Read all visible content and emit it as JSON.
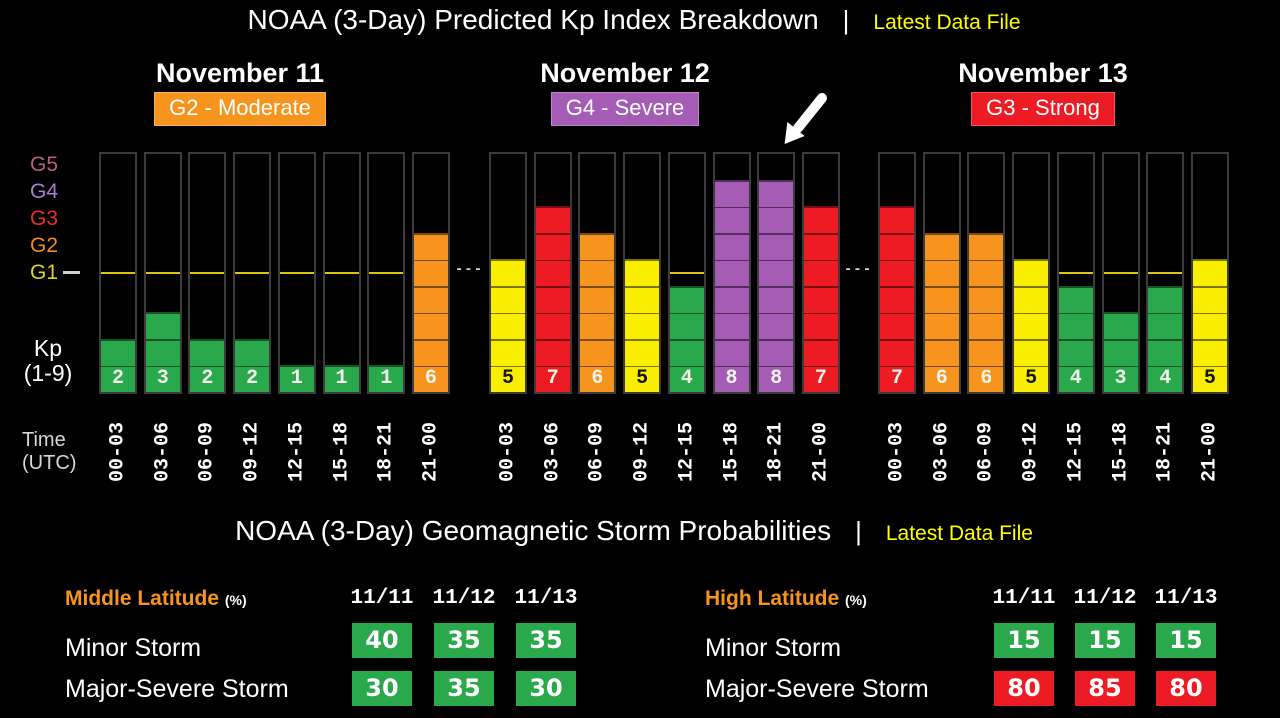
{
  "header": {
    "title": "NOAA (3-Day) Predicted Kp Index Breakdown",
    "separator": "|",
    "link_label": "Latest Data File",
    "link_color": "#ffff00"
  },
  "kp_chart": {
    "days": [
      {
        "name": "November 11",
        "badge_text": "G2 - Moderate",
        "badge_color": "#f7941d",
        "values": [
          2,
          3,
          2,
          2,
          1,
          1,
          1,
          6
        ]
      },
      {
        "name": "November 12",
        "badge_text": "G4 - Severe",
        "badge_color": "#a55cb4",
        "values": [
          5,
          7,
          6,
          5,
          4,
          8,
          8,
          7
        ]
      },
      {
        "name": "November 13",
        "badge_text": "G3 - Strong",
        "badge_color": "#ed1c24",
        "values": [
          7,
          6,
          6,
          5,
          4,
          3,
          4,
          5
        ]
      }
    ],
    "g_labels": [
      {
        "text": "G5",
        "color": "#b4607d"
      },
      {
        "text": "G4",
        "color": "#a97fd1"
      },
      {
        "text": "G3",
        "color": "#e8302a"
      },
      {
        "text": "G2",
        "color": "#f28c1e"
      },
      {
        "text": "G1",
        "color": "#ddd22b"
      }
    ],
    "kp_axis_label": [
      "Kp",
      "(1-9)"
    ],
    "time_axis_label": [
      "Time",
      "(UTC)"
    ],
    "time_slots": [
      "00-03",
      "03-06",
      "06-09",
      "09-12",
      "12-15",
      "15-18",
      "18-21",
      "21-00"
    ],
    "panel_separator": "---",
    "value_colors": {
      "1": "#2aa84c",
      "2": "#2aa84c",
      "3": "#2aa84c",
      "4": "#2aa84c",
      "5": "#f9ed00",
      "6": "#f7941d",
      "7": "#ed1c24",
      "8": "#a55cb4",
      "9": "#b4607d"
    },
    "number_colors": {
      "on_yellow": "#141414",
      "default": "#f4f4ec"
    },
    "g1_line_color": "#d9c514"
  },
  "prob_section": {
    "title": "NOAA (3-Day) Geomagnetic Storm Probabilities",
    "separator": "|",
    "link_label": "Latest Data File",
    "tables": [
      {
        "name": "Middle Latitude",
        "unit": "(%)",
        "columns": [
          "11/11",
          "11/12",
          "11/13"
        ],
        "rows": [
          {
            "label": "Minor Storm",
            "cells": [
              {
                "value": "40",
                "color": "#2aa84c"
              },
              {
                "value": "35",
                "color": "#2aa84c"
              },
              {
                "value": "35",
                "color": "#2aa84c"
              }
            ]
          },
          {
            "label": "Major-Severe Storm",
            "cells": [
              {
                "value": "30",
                "color": "#2aa84c"
              },
              {
                "value": "35",
                "color": "#2aa84c"
              },
              {
                "value": "30",
                "color": "#2aa84c"
              }
            ]
          }
        ]
      },
      {
        "name": "High Latitude",
        "unit": "(%)",
        "columns": [
          "11/11",
          "11/12",
          "11/13"
        ],
        "rows": [
          {
            "label": "Minor Storm",
            "cells": [
              {
                "value": "15",
                "color": "#2aa84c"
              },
              {
                "value": "15",
                "color": "#2aa84c"
              },
              {
                "value": "15",
                "color": "#2aa84c"
              }
            ]
          },
          {
            "label": "Major-Severe Storm",
            "cells": [
              {
                "value": "80",
                "color": "#ed1c24"
              },
              {
                "value": "85",
                "color": "#ed1c24"
              },
              {
                "value": "80",
                "color": "#ed1c24"
              }
            ]
          }
        ]
      }
    ]
  },
  "chart_data": [
    {
      "type": "bar",
      "title": "NOAA (3-Day) Predicted Kp Index Breakdown",
      "ylabel": "Kp (1-9)",
      "ylim": [
        0,
        9
      ],
      "grid": false,
      "x_categories_per_day": [
        "00-03",
        "03-06",
        "06-09",
        "09-12",
        "12-15",
        "15-18",
        "18-21",
        "21-00"
      ],
      "series": [
        {
          "name": "November 11",
          "storm_level": "G2 - Moderate",
          "values": [
            2,
            3,
            2,
            2,
            1,
            1,
            1,
            6
          ]
        },
        {
          "name": "November 12",
          "storm_level": "G4 - Severe",
          "values": [
            5,
            7,
            6,
            5,
            4,
            8,
            8,
            7
          ]
        },
        {
          "name": "November 13",
          "storm_level": "G3 - Strong",
          "values": [
            7,
            6,
            6,
            5,
            4,
            3,
            4,
            5
          ]
        }
      ],
      "g_scale_ticks": [
        {
          "label": "G5",
          "kp": 9
        },
        {
          "label": "G4",
          "kp": 8
        },
        {
          "label": "G3",
          "kp": 7
        },
        {
          "label": "G2",
          "kp": 6
        },
        {
          "label": "G1",
          "kp": 5
        }
      ],
      "threshold_line": {
        "label": "G1",
        "kp": 5
      },
      "color_mapping": {
        "kp_1_4": "green",
        "kp_5": "yellow",
        "kp_6": "orange",
        "kp_7": "red",
        "kp_8": "purple"
      }
    },
    {
      "type": "table",
      "title": "NOAA (3-Day) Geomagnetic Storm Probabilities",
      "tables": [
        {
          "name": "Middle Latitude (%)",
          "columns": [
            "11/11",
            "11/12",
            "11/13"
          ],
          "rows": [
            {
              "label": "Minor Storm",
              "values": [
                40,
                35,
                35
              ]
            },
            {
              "label": "Major-Severe Storm",
              "values": [
                30,
                35,
                30
              ]
            }
          ]
        },
        {
          "name": "High Latitude (%)",
          "columns": [
            "11/11",
            "11/12",
            "11/13"
          ],
          "rows": [
            {
              "label": "Minor Storm",
              "values": [
                15,
                15,
                15
              ]
            },
            {
              "label": "Major-Severe Storm",
              "values": [
                80,
                85,
                80
              ]
            }
          ]
        }
      ]
    }
  ]
}
